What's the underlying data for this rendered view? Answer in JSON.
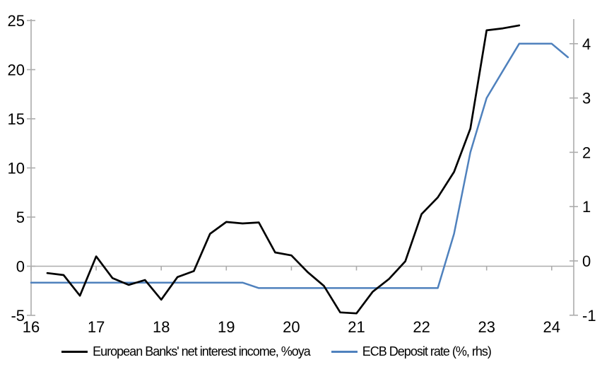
{
  "chart_data": {
    "type": "line",
    "title": "",
    "frequency": "quarterly",
    "x_axis": {
      "label": "",
      "tick_values": [
        16,
        17,
        18,
        19,
        20,
        21,
        22,
        23,
        24
      ],
      "tick_labels": [
        "16",
        "17",
        "18",
        "19",
        "20",
        "21",
        "22",
        "23",
        "24"
      ],
      "min": 16,
      "max": 24.35
    },
    "y_left": {
      "label": "",
      "tick_values": [
        25,
        20,
        15,
        10,
        5,
        0,
        -5
      ],
      "tick_labels": [
        "25",
        "20",
        "15",
        "10",
        "5",
        "0",
        "-5"
      ],
      "min": -5,
      "max": 25
    },
    "y_right": {
      "label": "",
      "tick_values": [
        4,
        3,
        2,
        1,
        0,
        -1
      ],
      "tick_labels": [
        "4",
        "3",
        "2",
        "1",
        "0",
        "-1"
      ],
      "min": -1,
      "max": 4
    },
    "gridlines": "zero-line-only",
    "legend_position": "bottom",
    "series": [
      {
        "name": "European Banks' net interest income, %oya",
        "axis": "left",
        "color": "#000000",
        "x": [
          16.25,
          16.5,
          16.75,
          17.0,
          17.25,
          17.5,
          17.75,
          18.0,
          18.25,
          18.5,
          18.75,
          19.0,
          19.25,
          19.5,
          19.75,
          20.0,
          20.25,
          20.5,
          20.75,
          21.0,
          21.25,
          21.5,
          21.75,
          22.0,
          22.25,
          22.5,
          22.75,
          23.0,
          23.25,
          23.5
        ],
        "values": [
          -0.7,
          -0.9,
          -3.0,
          1.0,
          -1.2,
          -1.9,
          -1.4,
          -3.4,
          -1.1,
          -0.5,
          3.3,
          4.5,
          4.35,
          4.45,
          1.4,
          1.1,
          -0.6,
          -2.0,
          -4.7,
          -4.8,
          -2.6,
          -1.3,
          0.5,
          5.3,
          7.0,
          9.6,
          14.0,
          24.0,
          24.2,
          24.5
        ]
      },
      {
        "name": "ECB Deposit rate (%, rhs)",
        "axis": "right",
        "color": "#4F81BD",
        "x": [
          16.0,
          16.25,
          16.5,
          16.75,
          17.0,
          17.25,
          17.5,
          17.75,
          18.0,
          18.25,
          18.5,
          18.75,
          19.0,
          19.25,
          19.5,
          19.75,
          20.0,
          20.25,
          20.5,
          20.75,
          21.0,
          21.25,
          21.5,
          21.75,
          22.0,
          22.25,
          22.5,
          22.75,
          23.0,
          23.25,
          23.5,
          23.75,
          24.0,
          24.25
        ],
        "values": [
          -0.4,
          -0.4,
          -0.4,
          -0.4,
          -0.4,
          -0.4,
          -0.4,
          -0.4,
          -0.4,
          -0.4,
          -0.4,
          -0.4,
          -0.4,
          -0.4,
          -0.5,
          -0.5,
          -0.5,
          -0.5,
          -0.5,
          -0.5,
          -0.5,
          -0.5,
          -0.5,
          -0.5,
          -0.5,
          -0.5,
          0.5,
          2.0,
          3.0,
          3.5,
          4.0,
          4.0,
          4.0,
          3.75
        ]
      }
    ]
  },
  "colors": {
    "axis": "#ACACAC",
    "zero_gridline": "#ACACAC",
    "background": "#FFFFFF",
    "text": "#000000"
  }
}
